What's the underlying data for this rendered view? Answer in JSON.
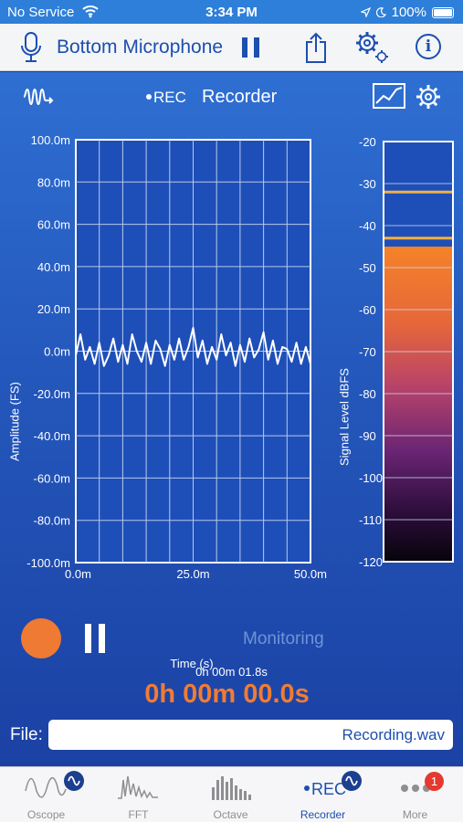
{
  "status_bar": {
    "carrier": "No Service",
    "time": "3:34 PM",
    "battery": "100%"
  },
  "toolbar": {
    "title": "Bottom Microphone"
  },
  "header": {
    "rec": "REC",
    "title": "Recorder"
  },
  "chart_data": [
    {
      "type": "line",
      "title": "",
      "xlabel": "Time (s)",
      "ylabel": "Amplitude (FS)",
      "x_ticks": [
        "0.0m",
        "25.0m",
        "50.0m"
      ],
      "y_ticks": [
        "100.0m",
        "80.0m",
        "60.0m",
        "40.0m",
        "20.0m",
        "0.0m",
        "-20.0m",
        "-40.0m",
        "-60.0m",
        "-80.0m",
        "-100.0m"
      ],
      "xlim": [
        0,
        0.05
      ],
      "ylim": [
        -0.1,
        0.1
      ],
      "grid": true,
      "series": [
        {
          "x": [
            0,
            0.001,
            0.002,
            0.003,
            0.004,
            0.005,
            0.006,
            0.007,
            0.008,
            0.009,
            0.01,
            0.011,
            0.012,
            0.013,
            0.014,
            0.015,
            0.016,
            0.017,
            0.018,
            0.019,
            0.02,
            0.021,
            0.022,
            0.023,
            0.024,
            0.025,
            0.026,
            0.027,
            0.028,
            0.029,
            0.03,
            0.031,
            0.032,
            0.033,
            0.034,
            0.035,
            0.036,
            0.037,
            0.038,
            0.039,
            0.04,
            0.041,
            0.042,
            0.043,
            0.044,
            0.045,
            0.046,
            0.047,
            0.048,
            0.049,
            0.05
          ],
          "y": [
            -0.002,
            0.008,
            -0.004,
            0.002,
            -0.006,
            0.004,
            -0.007,
            -0.002,
            0.006,
            -0.005,
            0.003,
            -0.006,
            0.008,
            0.0,
            -0.005,
            0.004,
            -0.006,
            0.005,
            0.001,
            -0.007,
            0.003,
            -0.004,
            0.006,
            -0.004,
            0.002,
            0.011,
            -0.003,
            0.005,
            -0.006,
            0.002,
            -0.004,
            0.008,
            -0.002,
            0.004,
            -0.007,
            0.003,
            -0.005,
            0.006,
            -0.003,
            0.001,
            0.009,
            -0.004,
            0.005,
            -0.006,
            0.002,
            0.001,
            -0.005,
            0.004,
            -0.006,
            0.002,
            -0.006
          ]
        }
      ]
    },
    {
      "type": "bar",
      "title": "",
      "ylabel": "Signal Level dBFS",
      "y_ticks": [
        "-20",
        "-30",
        "-40",
        "-50",
        "-60",
        "-70",
        "-80",
        "-90",
        "-100",
        "-110",
        "-120"
      ],
      "ylim": [
        -120,
        -20
      ],
      "level": -45,
      "peak_markers": [
        -32,
        -43
      ]
    }
  ],
  "controls": {
    "monitoring": "Monitoring",
    "elapsed_small": "0h 00m 01.8s",
    "elapsed_big": "0h 00m 00.0s"
  },
  "file": {
    "label": "File:",
    "name": "Recording.wav"
  },
  "tabs": [
    {
      "label": "Oscope"
    },
    {
      "label": "FFT"
    },
    {
      "label": "Octave"
    },
    {
      "label": "Recorder",
      "rec": "REC"
    },
    {
      "label": "More",
      "badge": "1"
    }
  ],
  "colors": {
    "accent": "#1c4fae",
    "record": "#ee7a33",
    "elapsed": "#f07c33",
    "badge": "#e5392f",
    "marker": "#f2b042"
  }
}
